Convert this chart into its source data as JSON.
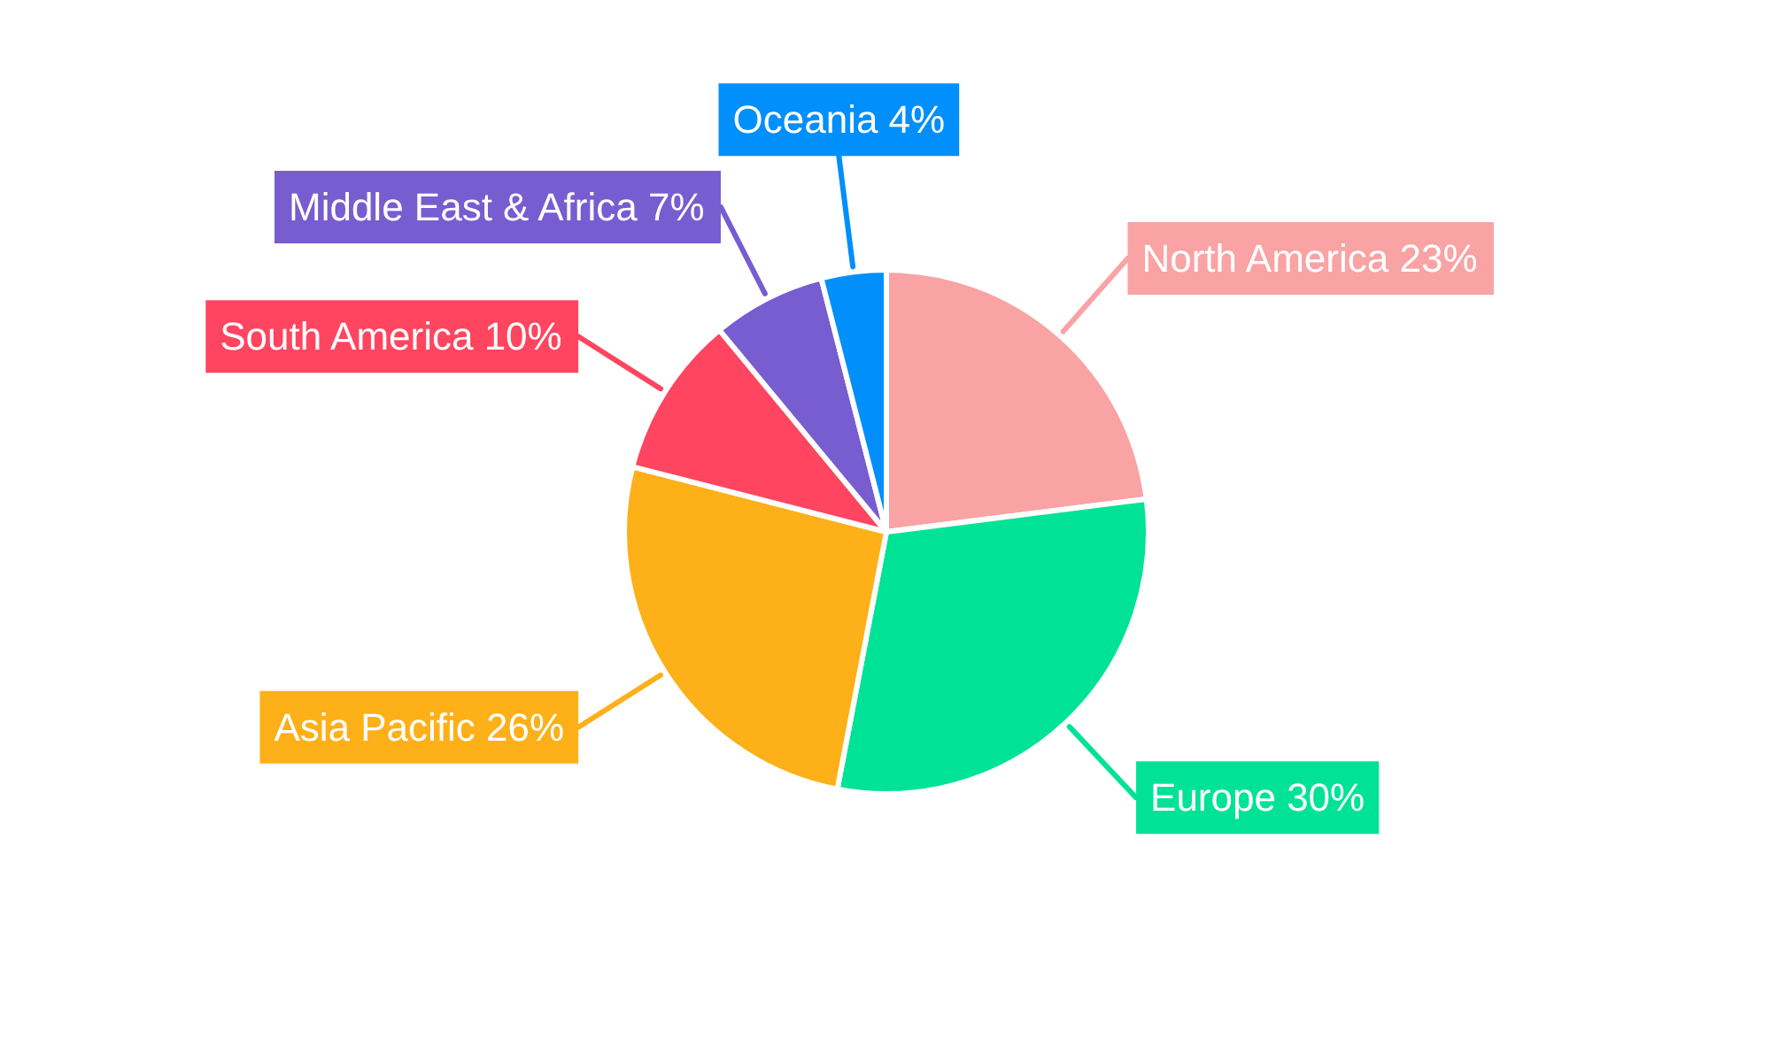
{
  "chart_data": {
    "type": "pie",
    "categories": [
      "North America",
      "Europe",
      "Asia Pacific",
      "South America",
      "Middle East & Africa",
      "Oceania"
    ],
    "values": [
      23,
      30,
      26,
      10,
      7,
      4
    ],
    "value_labels": [
      "23%",
      "30%",
      "26%",
      "10%",
      "7%",
      "4%"
    ],
    "colors": [
      "#f9a3a4",
      "#00e396",
      "#feb019",
      "#ff4560",
      "#775dd0",
      "#008ffb"
    ]
  }
}
